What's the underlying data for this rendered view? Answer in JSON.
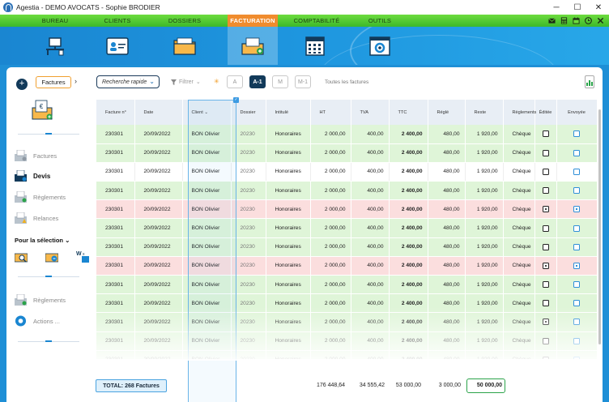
{
  "window": {
    "title": "Agestia - DEMO AVOCATS - Sophie BRODIER",
    "minimize": "─",
    "maximize": "☐",
    "close": "✕"
  },
  "menu": {
    "items": [
      "BUREAU",
      "CLIENTS",
      "DOSSIERS",
      "FACTURATION",
      "COMPTABILITÉ",
      "OUTILS"
    ],
    "active": "FACTURATION",
    "tools": [
      "mail-icon",
      "calculator-icon",
      "calendar-icon",
      "clock-icon",
      "close-icon"
    ]
  },
  "band": {
    "icons": [
      "desk-icon",
      "client-card-icon",
      "folder-icon",
      "invoice-folder-icon",
      "calculator-grid-icon",
      "settings-window-icon"
    ]
  },
  "toolbar": {
    "add_label": "+",
    "breadcrumb": "Factures",
    "breadcrumb_chevron": "›",
    "quick_search": "Recherche rapide",
    "filter": "Filtrer",
    "segments": [
      "A",
      "A-1",
      "M",
      "M-1"
    ],
    "active_segment": "A-1",
    "all_invoices": "Toutes les factures"
  },
  "sidebar": {
    "items": [
      {
        "label": "Factures",
        "bold": false
      },
      {
        "label": "Devis",
        "bold": true
      },
      {
        "label": "Règlements",
        "bold": false
      },
      {
        "label": "Relances",
        "bold": false
      }
    ],
    "selection_title": "Pour la sélection",
    "selection_chevron": "⌄",
    "bottom": [
      {
        "label": "Règlements"
      },
      {
        "label": "Actions ..."
      }
    ]
  },
  "table": {
    "headers": [
      "Facture n°",
      "Date",
      "Client",
      "Dossier",
      "Intitulé",
      "HT",
      "TVA",
      "TTC",
      "Réglé",
      "Reste",
      "Règlements",
      "Éditée",
      "Envoyée"
    ],
    "client_sort": "⌄",
    "rows": [
      {
        "style": "green",
        "facture": "230301",
        "date": "20/09/2022",
        "client": "BON Olivier",
        "dossier": "20230",
        "intitule": "Honoraires",
        "ht": "2 000,00",
        "tva": "400,00",
        "ttc": "2 400,00",
        "regle": "480,00",
        "reste": "1 920,00",
        "reglements": "Chèque",
        "editee": false,
        "envoyee": false
      },
      {
        "style": "green",
        "facture": "230301",
        "date": "20/09/2022",
        "client": "BON Olivier",
        "dossier": "20230",
        "intitule": "Honoraires",
        "ht": "2 000,00",
        "tva": "400,00",
        "ttc": "2 400,00",
        "regle": "480,00",
        "reste": "1 920,00",
        "reglements": "Chèque",
        "editee": false,
        "envoyee": false
      },
      {
        "style": "white",
        "facture": "230301",
        "date": "20/09/2022",
        "client": "BON Olivier",
        "dossier": "20230",
        "intitule": "Honoraires",
        "ht": "2 000,00",
        "tva": "400,00",
        "ttc": "2 400,00",
        "regle": "480,00",
        "reste": "1 920,00",
        "reglements": "Chèque",
        "editee": false,
        "envoyee": false
      },
      {
        "style": "green",
        "facture": "230301",
        "date": "20/09/2022",
        "client": "BON Olivier",
        "dossier": "20230",
        "intitule": "Honoraires",
        "ht": "2 000,00",
        "tva": "400,00",
        "ttc": "2 400,00",
        "regle": "480,00",
        "reste": "1 920,00",
        "reglements": "Chèque",
        "editee": false,
        "envoyee": false
      },
      {
        "style": "red",
        "facture": "230301",
        "date": "20/09/2022",
        "client": "BON Olivier",
        "dossier": "20230",
        "intitule": "Honoraires",
        "ht": "2 000,00",
        "tva": "400,00",
        "ttc": "2 400,00",
        "regle": "480,00",
        "reste": "1 920,00",
        "reglements": "Chèque",
        "editee": true,
        "envoyee": true
      },
      {
        "style": "green",
        "facture": "230301",
        "date": "20/09/2022",
        "client": "BON Olivier",
        "dossier": "20230",
        "intitule": "Honoraires",
        "ht": "2 000,00",
        "tva": "400,00",
        "ttc": "2 400,00",
        "regle": "480,00",
        "reste": "1 920,00",
        "reglements": "Chèque",
        "editee": false,
        "envoyee": false
      },
      {
        "style": "green",
        "facture": "230301",
        "date": "20/09/2022",
        "client": "BON Olivier",
        "dossier": "20230",
        "intitule": "Honoraires",
        "ht": "2 000,00",
        "tva": "400,00",
        "ttc": "2 400,00",
        "regle": "480,00",
        "reste": "1 920,00",
        "reglements": "Chèque",
        "editee": false,
        "envoyee": false
      },
      {
        "style": "red",
        "facture": "230301",
        "date": "20/09/2022",
        "client": "BON Olivier",
        "dossier": "20230",
        "intitule": "Honoraires",
        "ht": "2 000,00",
        "tva": "400,00",
        "ttc": "2 400,00",
        "regle": "480,00",
        "reste": "1 920,00",
        "reglements": "Chèque",
        "editee": true,
        "envoyee": true
      },
      {
        "style": "green",
        "facture": "230301",
        "date": "20/09/2022",
        "client": "BON Olivier",
        "dossier": "20230",
        "intitule": "Honoraires",
        "ht": "2 000,00",
        "tva": "400,00",
        "ttc": "2 400,00",
        "regle": "480,00",
        "reste": "1 920,00",
        "reglements": "Chèque",
        "editee": false,
        "envoyee": false
      },
      {
        "style": "green",
        "facture": "230301",
        "date": "20/09/2022",
        "client": "BON Olivier",
        "dossier": "20230",
        "intitule": "Honoraires",
        "ht": "2 000,00",
        "tva": "400,00",
        "ttc": "2 400,00",
        "regle": "480,00",
        "reste": "1 920,00",
        "reglements": "Chèque",
        "editee": false,
        "envoyee": false
      },
      {
        "style": "green",
        "facture": "230301",
        "date": "20/09/2022",
        "client": "BON Olivier",
        "dossier": "20230",
        "intitule": "Honoraires",
        "ht": "2 000,00",
        "tva": "400,00",
        "ttc": "2 400,00",
        "regle": "480,00",
        "reste": "1 920,00",
        "reglements": "Chèque",
        "editee": true,
        "envoyee": false
      },
      {
        "style": "green",
        "facture": "230301",
        "date": "20/09/2022",
        "client": "BON Olivier",
        "dossier": "20230",
        "intitule": "Honoraires",
        "ht": "2 000,00",
        "tva": "400,00",
        "ttc": "2 400,00",
        "regle": "480,00",
        "reste": "1 920,00",
        "reglements": "Chèque",
        "editee": false,
        "envoyee": false
      },
      {
        "style": "green",
        "facture": "230301",
        "date": "20/09/2022",
        "client": "BON Olivier",
        "dossier": "20230",
        "intitule": "Honoraires",
        "ht": "2 000,00",
        "tva": "400,00",
        "ttc": "2 400,00",
        "regle": "480,00",
        "reste": "1 920,00",
        "reglements": "Chèque",
        "editee": false,
        "envoyee": false
      }
    ]
  },
  "footer": {
    "total_label": "TOTAL: 268 Factures",
    "ht": "176 448,64",
    "tva": "34 555,42",
    "ttc": "53 000,00",
    "regle": "3 000,00",
    "reste": "50 000,00"
  },
  "colors": {
    "menu_green": "#4cc733",
    "active_orange": "#f08c2e",
    "band_blue": "#1e96df",
    "row_green": "#dff5d8",
    "row_red": "#fbdede",
    "navy": "#123a5a"
  }
}
